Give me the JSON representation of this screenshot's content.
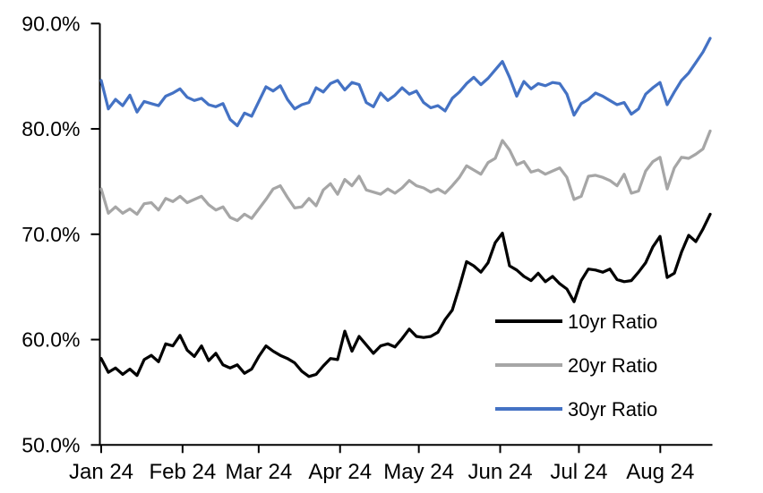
{
  "chart_data": {
    "type": "line",
    "title": "",
    "grid": false,
    "legend": {
      "position": "inside-lower-right"
    },
    "x_axis": {
      "total_days": 232,
      "ticks": [
        {
          "label": "Jan 24",
          "day": 0
        },
        {
          "label": "Feb 24",
          "day": 31
        },
        {
          "label": "Mar 24",
          "day": 60
        },
        {
          "label": "Apr 24",
          "day": 91
        },
        {
          "label": "May 24",
          "day": 121
        },
        {
          "label": "Jun 24",
          "day": 152
        },
        {
          "label": "Jul 24",
          "day": 182
        },
        {
          "label": "Aug 24",
          "day": 213
        }
      ]
    },
    "y_axis": {
      "min": 50,
      "max": 90,
      "ticks": [
        {
          "value": 50,
          "label": "50.0%"
        },
        {
          "value": 60,
          "label": "60.0%"
        },
        {
          "value": 70,
          "label": "70.0%"
        },
        {
          "value": 80,
          "label": "80.0%"
        },
        {
          "value": 90,
          "label": "90.0%"
        }
      ]
    },
    "series": [
      {
        "name": "10yr Ratio",
        "color": "#000000",
        "values": [
          58.2,
          56.9,
          57.3,
          56.7,
          57.2,
          56.6,
          58.1,
          58.5,
          57.9,
          59.6,
          59.4,
          60.4,
          59.0,
          58.4,
          59.4,
          58.0,
          58.7,
          57.6,
          57.3,
          57.6,
          56.8,
          57.2,
          58.4,
          59.4,
          58.9,
          58.5,
          58.2,
          57.8,
          57.0,
          56.5,
          56.7,
          57.5,
          58.2,
          58.1,
          60.8,
          58.9,
          60.3,
          59.5,
          58.7,
          59.4,
          59.6,
          59.3,
          60.1,
          61.0,
          60.3,
          60.2,
          60.3,
          60.7,
          61.9,
          62.8,
          65.0,
          67.4,
          67.0,
          66.4,
          67.3,
          69.2,
          70.1,
          67.0,
          66.6,
          66.0,
          65.6,
          66.3,
          65.5,
          66.0,
          65.3,
          64.8,
          63.6,
          65.6,
          66.7,
          66.6,
          66.4,
          66.7,
          65.7,
          65.5,
          65.6,
          66.4,
          67.3,
          68.8,
          69.8,
          65.9,
          66.3,
          68.3,
          69.9,
          69.3,
          70.5,
          71.9
        ]
      },
      {
        "name": "20yr Ratio",
        "color": "#A6A6A6",
        "values": [
          74.3,
          72.0,
          72.6,
          72.0,
          72.4,
          71.9,
          72.9,
          73.0,
          72.3,
          73.4,
          73.1,
          73.6,
          73.0,
          73.3,
          73.6,
          72.8,
          72.3,
          72.6,
          71.6,
          71.3,
          71.9,
          71.5,
          72.4,
          73.3,
          74.3,
          74.6,
          73.5,
          72.5,
          72.6,
          73.4,
          72.7,
          74.2,
          74.8,
          73.8,
          75.2,
          74.6,
          75.5,
          74.2,
          74.0,
          73.8,
          74.3,
          73.9,
          74.4,
          75.1,
          74.6,
          74.4,
          74.0,
          74.3,
          73.9,
          74.6,
          75.4,
          76.5,
          76.1,
          75.7,
          76.8,
          77.2,
          78.9,
          78.0,
          76.6,
          76.9,
          75.9,
          76.1,
          75.7,
          76.0,
          76.3,
          75.4,
          73.3,
          73.6,
          75.5,
          75.6,
          75.4,
          75.1,
          74.6,
          75.7,
          73.9,
          74.1,
          76.0,
          76.9,
          77.3,
          74.3,
          76.3,
          77.3,
          77.2,
          77.6,
          78.1,
          79.8
        ]
      },
      {
        "name": "30yr Ratio",
        "color": "#4472C4",
        "values": [
          84.6,
          81.9,
          82.8,
          82.2,
          83.2,
          81.6,
          82.6,
          82.4,
          82.2,
          83.1,
          83.4,
          83.8,
          83.0,
          82.7,
          82.9,
          82.3,
          82.1,
          82.4,
          80.9,
          80.3,
          81.5,
          81.2,
          82.6,
          84.0,
          83.6,
          84.1,
          82.8,
          81.9,
          82.3,
          82.5,
          83.9,
          83.5,
          84.3,
          84.6,
          83.7,
          84.4,
          84.2,
          82.5,
          82.1,
          83.4,
          82.7,
          83.2,
          83.9,
          83.3,
          83.6,
          82.5,
          82.0,
          82.2,
          81.7,
          82.9,
          83.5,
          84.3,
          84.9,
          84.2,
          84.8,
          85.6,
          86.4,
          84.9,
          83.1,
          84.5,
          83.8,
          84.3,
          84.1,
          84.4,
          84.3,
          83.3,
          81.3,
          82.4,
          82.8,
          83.4,
          83.1,
          82.7,
          82.3,
          82.5,
          81.4,
          81.9,
          83.3,
          83.9,
          84.4,
          82.3,
          83.5,
          84.6,
          85.3,
          86.3,
          87.3,
          88.6
        ]
      }
    ]
  }
}
